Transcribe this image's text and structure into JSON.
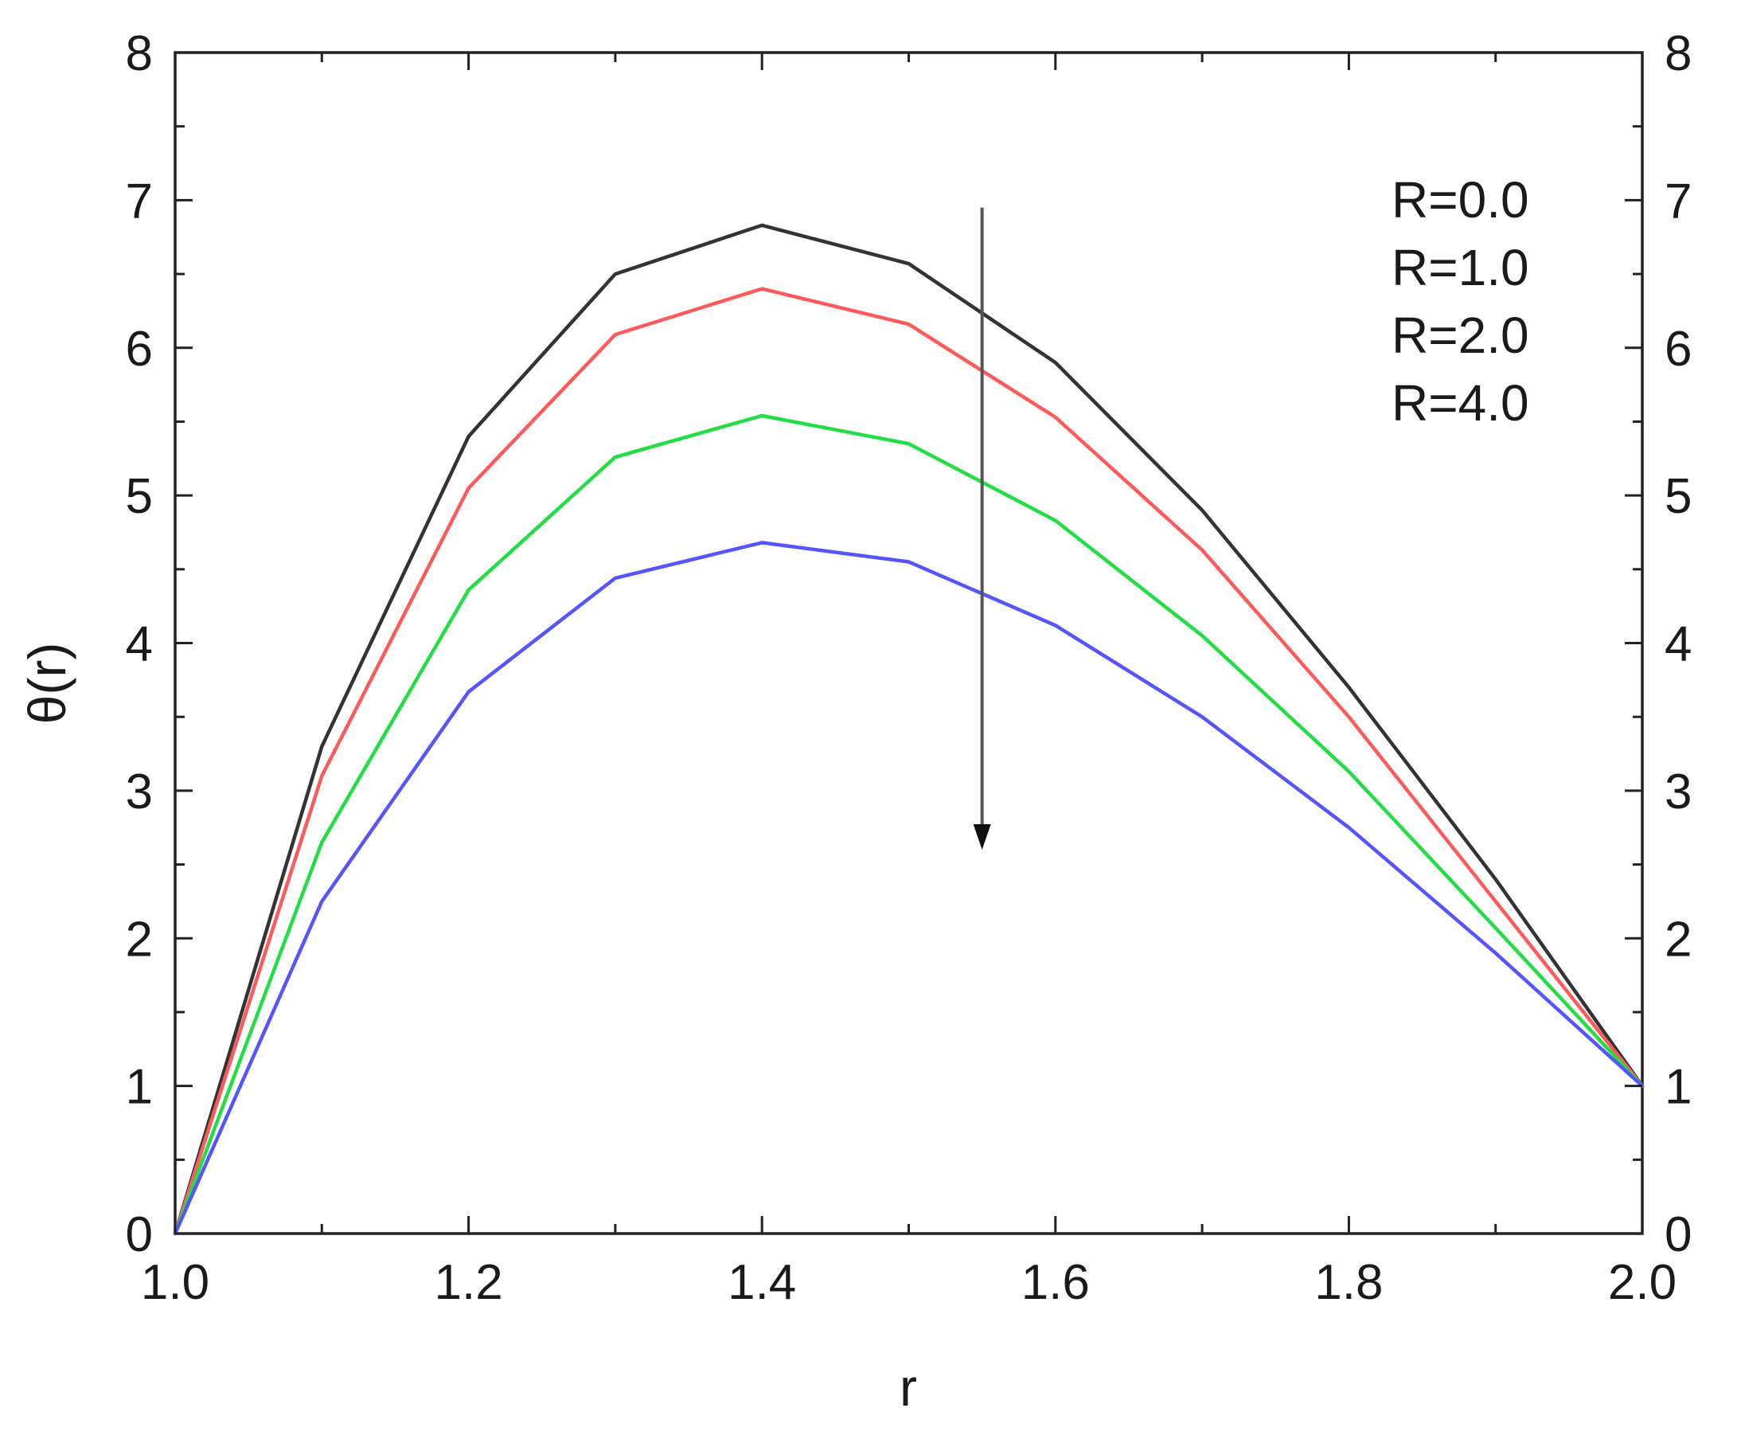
{
  "chart_data": {
    "type": "line",
    "title": "",
    "xlabel": "r",
    "ylabel": "θ(r)",
    "xlim": [
      1.0,
      2.0
    ],
    "ylim": [
      0,
      8
    ],
    "x_tick_labels": [
      "1.0",
      "1.2",
      "1.4",
      "1.6",
      "1.8",
      "2.0"
    ],
    "y_tick_labels": [
      "0",
      "1",
      "2",
      "3",
      "4",
      "5",
      "6",
      "7",
      "8"
    ],
    "right_axis_tick_labels": [
      "0",
      "1",
      "2",
      "3",
      "4",
      "5",
      "6",
      "7",
      "8"
    ],
    "grid": false,
    "legend_position": "top-right",
    "x": [
      1.0,
      1.1,
      1.2,
      1.3,
      1.4,
      1.5,
      1.6,
      1.7,
      1.8,
      1.9,
      2.0
    ],
    "series": [
      {
        "name": "R=0.0",
        "color": "#333333",
        "values": [
          0.0,
          3.3,
          5.4,
          6.5,
          6.83,
          6.57,
          5.9,
          4.9,
          3.7,
          2.4,
          1.0
        ]
      },
      {
        "name": "R=1.0",
        "color": "#ff5a5a",
        "values": [
          0.0,
          3.1,
          5.05,
          6.09,
          6.4,
          6.16,
          5.53,
          4.63,
          3.5,
          2.25,
          1.0
        ]
      },
      {
        "name": "R=2.0",
        "color": "#22dd44",
        "values": [
          0.0,
          2.65,
          4.36,
          5.26,
          5.54,
          5.35,
          4.83,
          4.05,
          3.13,
          2.07,
          1.0
        ]
      },
      {
        "name": "R=4.0",
        "color": "#5555ff",
        "values": [
          0.0,
          2.25,
          3.67,
          4.44,
          4.68,
          4.55,
          4.12,
          3.5,
          2.75,
          1.9,
          1.0
        ]
      }
    ],
    "annotation": {
      "type": "arrow",
      "from": [
        1.55,
        6.95
      ],
      "to": [
        1.55,
        2.6
      ]
    }
  }
}
